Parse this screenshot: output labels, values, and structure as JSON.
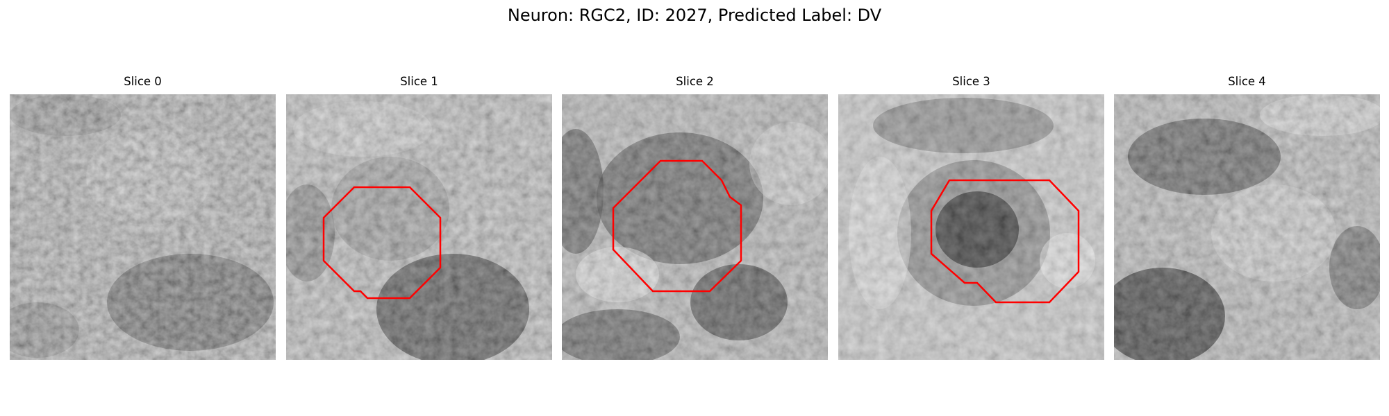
{
  "figure": {
    "title": "Neuron: RGC2, ID: 2027, Predicted Label: DV"
  },
  "panels": [
    {
      "title": "Slice 0",
      "has_contour": false
    },
    {
      "title": "Slice 1",
      "has_contour": true
    },
    {
      "title": "Slice 2",
      "has_contour": true
    },
    {
      "title": "Slice 3",
      "has_contour": true
    },
    {
      "title": "Slice 4",
      "has_contour": false
    }
  ],
  "colors": {
    "contour": "#ff0000",
    "background": "#ffffff",
    "text": "#000000"
  },
  "image": {
    "colormap": "grayscale",
    "grid": "32x32"
  }
}
